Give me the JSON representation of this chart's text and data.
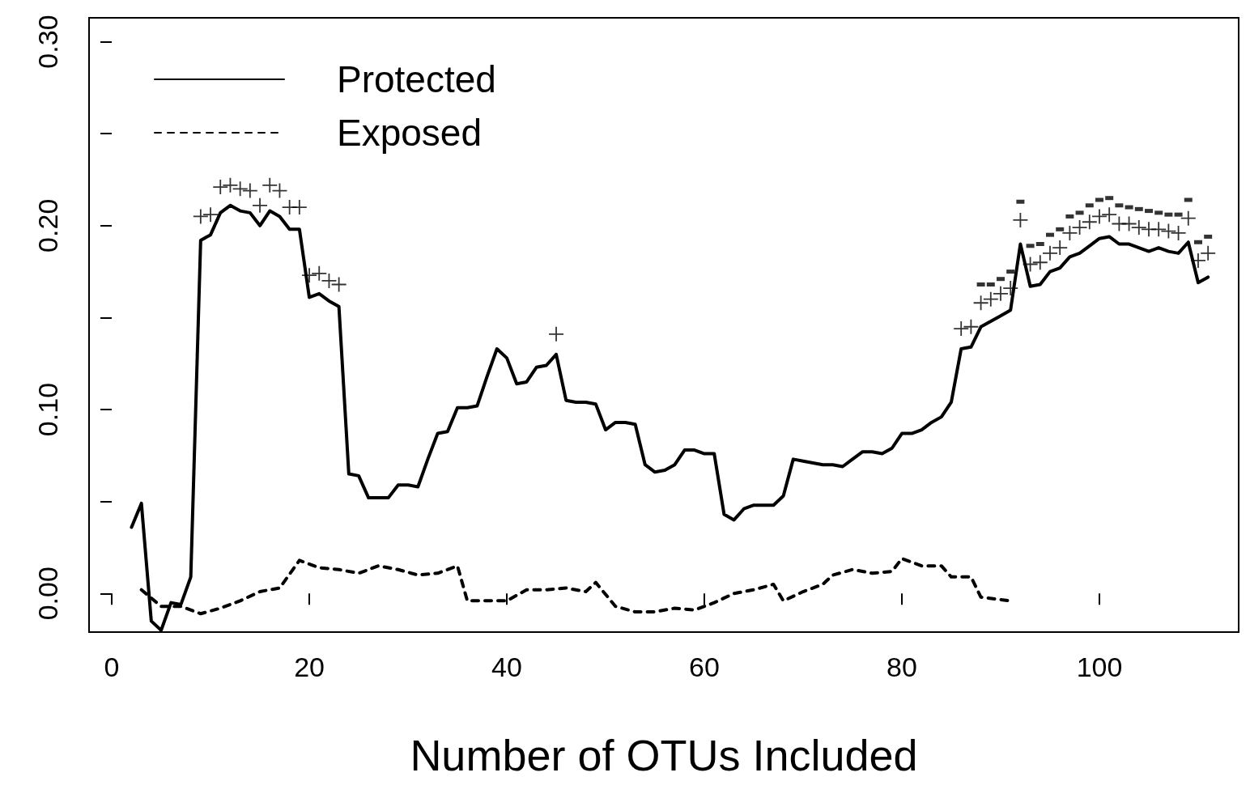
{
  "chart_data": {
    "type": "line",
    "xlabel": "Number of OTUs Included",
    "xlim": [
      -2.3,
      114.1
    ],
    "xticks": [
      0,
      20,
      40,
      60,
      80,
      100
    ],
    "ylim": [
      -0.021,
      0.313
    ],
    "yticks": [
      {
        "value": 0,
        "label": "0.00"
      },
      {
        "value": 0.05,
        "label": null
      },
      {
        "value": 0.1,
        "label": "0.10"
      },
      {
        "value": 0.15,
        "label": null
      },
      {
        "value": 0.2,
        "label": "0.20"
      },
      {
        "value": 0.25,
        "label": null
      },
      {
        "value": 0.3,
        "label": "0.30"
      }
    ],
    "grid": false,
    "legend": "top left",
    "series": [
      {
        "name": "Protected",
        "color": "#000000",
        "line_style": "solid",
        "marker": "none",
        "x": [
          2,
          3,
          4,
          5,
          6,
          7,
          8,
          9,
          10,
          11,
          12,
          13,
          14,
          15,
          16,
          17,
          18,
          19,
          20,
          21,
          22,
          23,
          24,
          25,
          26,
          27,
          28,
          29,
          30,
          31,
          32,
          33,
          34,
          35,
          36,
          37,
          38,
          39,
          40,
          41,
          42,
          43,
          44,
          45,
          46,
          47,
          48,
          49,
          50,
          51,
          52,
          53,
          54,
          55,
          56,
          57,
          58,
          59,
          60,
          61,
          62,
          63,
          64,
          65,
          66,
          67,
          68,
          69,
          70,
          71,
          72,
          73,
          74,
          75,
          76,
          77,
          78,
          79,
          80,
          81,
          82,
          83,
          84,
          85,
          86,
          87,
          88,
          89,
          90,
          91,
          92,
          93,
          94,
          95,
          96,
          97,
          98,
          99,
          100,
          101,
          102,
          103,
          104,
          105,
          106,
          107,
          108,
          109,
          110,
          111
        ],
        "values": [
          0.036,
          0.049,
          -0.015,
          -0.02,
          -0.005,
          -0.006,
          0.009,
          0.192,
          0.195,
          0.207,
          0.211,
          0.208,
          0.207,
          0.2,
          0.208,
          0.205,
          0.198,
          0.198,
          0.161,
          0.163,
          0.159,
          0.156,
          0.065,
          0.064,
          0.052,
          0.052,
          0.052,
          0.059,
          0.059,
          0.058,
          0.073,
          0.087,
          0.088,
          0.101,
          0.101,
          0.102,
          0.118,
          0.133,
          0.128,
          0.114,
          0.115,
          0.123,
          0.124,
          0.13,
          0.105,
          0.104,
          0.104,
          0.103,
          0.089,
          0.093,
          0.093,
          0.092,
          0.07,
          0.066,
          0.067,
          0.07,
          0.078,
          0.078,
          0.076,
          0.076,
          0.043,
          0.04,
          0.046,
          0.048,
          0.048,
          0.048,
          0.053,
          0.073,
          0.072,
          0.071,
          0.07,
          0.07,
          0.069,
          0.073,
          0.077,
          0.077,
          0.076,
          0.079,
          0.087,
          0.087,
          0.089,
          0.093,
          0.096,
          0.104,
          0.133,
          0.134,
          0.145,
          0.148,
          0.151,
          0.154,
          0.19,
          0.167,
          0.168,
          0.175,
          0.177,
          0.183,
          0.185,
          0.189,
          0.193,
          0.194,
          0.19,
          0.19,
          0.188,
          0.186,
          0.188,
          0.186,
          0.185,
          0.191,
          0.169,
          0.172
        ]
      },
      {
        "name": "Exposed",
        "color": "#000000",
        "line_style": "dashed",
        "marker": "none",
        "x": [
          3,
          5,
          7,
          9,
          11,
          13,
          15,
          17,
          19,
          21,
          23,
          25,
          27,
          29,
          31,
          33,
          35,
          36,
          38,
          40,
          42,
          44,
          46,
          48,
          49,
          51,
          53,
          55,
          57,
          59,
          61,
          63,
          65,
          67,
          68,
          70,
          72,
          73,
          75,
          77,
          79,
          80,
          82,
          84,
          85,
          87,
          88,
          91
        ],
        "values": [
          0.002,
          -0.007,
          -0.007,
          -0.011,
          -0.008,
          -0.004,
          0.001,
          0.003,
          0.018,
          0.014,
          0.013,
          0.011,
          0.015,
          0.013,
          0.01,
          0.011,
          0.015,
          -0.004,
          -0.004,
          -0.004,
          0.002,
          0.002,
          0.003,
          0.001,
          0.006,
          -0.007,
          -0.01,
          -0.01,
          -0.008,
          -0.009,
          -0.005,
          0.0,
          0.002,
          0.005,
          -0.004,
          0.001,
          0.005,
          0.01,
          0.013,
          0.011,
          0.012,
          0.019,
          0.015,
          0.015,
          0.009,
          0.009,
          -0.002,
          -0.004
        ]
      },
      {
        "type": "scatter",
        "color": "#000000",
        "marker": "cross",
        "x": [
          9,
          10,
          11,
          12,
          13,
          14,
          15,
          16,
          17,
          18,
          19,
          20,
          21,
          22,
          23,
          45,
          86,
          87,
          88,
          89,
          90,
          91,
          92,
          93,
          94,
          95,
          96,
          97,
          98,
          99,
          100,
          101,
          102,
          103,
          104,
          105,
          106,
          107,
          108,
          109,
          110,
          111
        ],
        "values": [
          0.205,
          0.206,
          0.221,
          0.222,
          0.22,
          0.219,
          0.211,
          0.222,
          0.219,
          0.21,
          0.21,
          0.173,
          0.174,
          0.17,
          0.168,
          0.141,
          0.144,
          0.145,
          0.158,
          0.16,
          0.163,
          0.166,
          0.203,
          0.179,
          0.18,
          0.185,
          0.188,
          0.196,
          0.199,
          0.202,
          0.205,
          0.206,
          0.201,
          0.201,
          0.199,
          0.198,
          0.198,
          0.197,
          0.196,
          0.204,
          0.181,
          0.185
        ]
      },
      {
        "type": "scatter",
        "color": "#000000",
        "marker": "square",
        "x": [
          88,
          89,
          90,
          91,
          92,
          93,
          94,
          95,
          96,
          97,
          98,
          99,
          100,
          101,
          102,
          103,
          104,
          105,
          106,
          107,
          108,
          109,
          110,
          111
        ],
        "values": [
          0.168,
          0.168,
          0.171,
          0.175,
          0.213,
          0.189,
          0.19,
          0.195,
          0.198,
          0.205,
          0.207,
          0.211,
          0.214,
          0.215,
          0.211,
          0.21,
          0.209,
          0.208,
          0.207,
          0.206,
          0.206,
          0.214,
          0.191,
          0.194
        ]
      }
    ]
  }
}
